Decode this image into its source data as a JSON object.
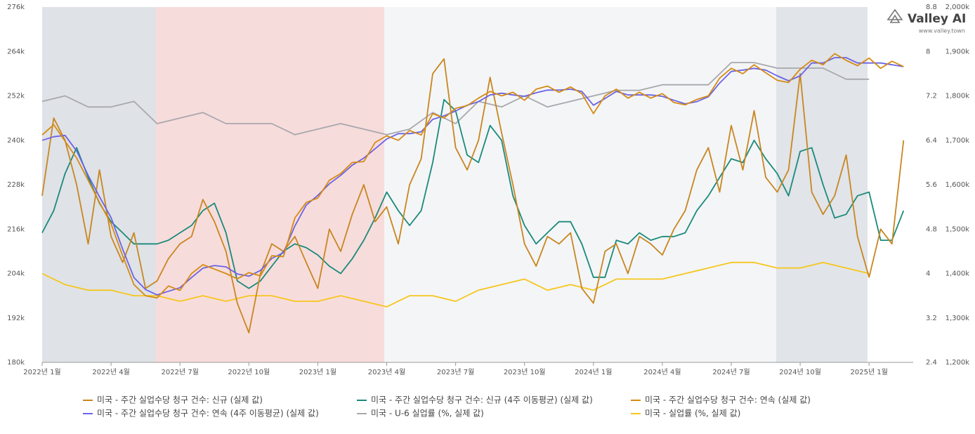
{
  "brand": {
    "name": "Valley AI",
    "url": "www.valley.town"
  },
  "chart_data": {
    "type": "line",
    "xlim": [
      2022,
      2025.16
    ],
    "xticks": [
      {
        "value": 2022,
        "label": "2022년 1월"
      },
      {
        "value": 2022.25,
        "label": "2022년 4월"
      },
      {
        "value": 2022.5,
        "label": "2022년 7월"
      },
      {
        "value": 2022.75,
        "label": "2022년 10월"
      },
      {
        "value": 2023,
        "label": "2023년 1월"
      },
      {
        "value": 2023.25,
        "label": "2023년 4월"
      },
      {
        "value": 2023.5,
        "label": "2023년 7월"
      },
      {
        "value": 2023.75,
        "label": "2023년 10월"
      },
      {
        "value": 2024,
        "label": "2024년 1월"
      },
      {
        "value": 2024.25,
        "label": "2024년 4월"
      },
      {
        "value": 2024.5,
        "label": "2024년 7월"
      },
      {
        "value": 2024.75,
        "label": "2024년 10월"
      },
      {
        "value": 2025,
        "label": "2025년 1월"
      }
    ],
    "ylim": [
      180,
      276
    ],
    "yticks": [
      {
        "value": 180,
        "label": "180k"
      },
      {
        "value": 192,
        "label": "192k"
      },
      {
        "value": 204,
        "label": "204k"
      },
      {
        "value": 216,
        "label": "216k"
      },
      {
        "value": 228,
        "label": "228k"
      },
      {
        "value": 240,
        "label": "240k"
      },
      {
        "value": 252,
        "label": "252k"
      },
      {
        "value": 264,
        "label": "264k"
      },
      {
        "value": 276,
        "label": "276k"
      }
    ],
    "y2lim": [
      2.4,
      8.8
    ],
    "y2ticks": [
      2.4,
      3.2,
      4,
      4.8,
      5.6,
      6.4,
      7.2,
      8,
      8.8
    ],
    "y3lim": [
      1200,
      2000
    ],
    "y3ticks": [
      {
        "value": 1200,
        "label": "1,200k"
      },
      {
        "value": 1300,
        "label": "1,300k"
      },
      {
        "value": 1400,
        "label": "1,400k"
      },
      {
        "value": 1500,
        "label": "1,500k"
      },
      {
        "value": 1600,
        "label": "1,600k"
      },
      {
        "value": 1700,
        "label": "1,700k"
      },
      {
        "value": 1800,
        "label": "1,800k"
      },
      {
        "value": 1900,
        "label": "1,900k"
      },
      {
        "value": 2000,
        "label": "2,000k"
      }
    ],
    "series": [
      {
        "name": "미국 - 주간 실업수당 청구 건수: 신규 (실제 값)",
        "color": "#c8861e",
        "axis": "y",
        "x": [
          2022,
          2022.042,
          2022.083,
          2022.125,
          2022.167,
          2022.208,
          2022.25,
          2022.292,
          2022.333,
          2022.375,
          2022.417,
          2022.458,
          2022.5,
          2022.542,
          2022.583,
          2022.625,
          2022.667,
          2022.708,
          2022.75,
          2022.792,
          2022.833,
          2022.875,
          2022.917,
          2022.958,
          2023,
          2023.042,
          2023.083,
          2023.125,
          2023.167,
          2023.208,
          2023.25,
          2023.292,
          2023.333,
          2023.375,
          2023.417,
          2023.458,
          2023.5,
          2023.542,
          2023.583,
          2023.625,
          2023.667,
          2023.708,
          2023.75,
          2023.792,
          2023.833,
          2023.875,
          2023.917,
          2023.958,
          2024,
          2024.042,
          2024.083,
          2024.125,
          2024.167,
          2024.208,
          2024.25,
          2024.292,
          2024.333,
          2024.375,
          2024.417,
          2024.458,
          2024.5,
          2024.542,
          2024.583,
          2024.625,
          2024.667,
          2024.708,
          2024.75,
          2024.792,
          2024.833,
          2024.875,
          2024.917,
          2024.958,
          2025,
          2025.042,
          2025.083,
          2025.125
        ],
        "values": [
          225,
          246,
          240,
          228,
          212,
          232,
          214,
          207,
          215,
          200,
          202,
          208,
          212,
          214,
          224,
          218,
          210,
          196,
          188,
          204,
          212,
          210,
          214,
          207,
          200,
          216,
          210,
          220,
          228,
          218,
          222,
          212,
          228,
          235,
          258,
          262,
          238,
          232,
          240,
          257,
          242,
          228,
          212,
          206,
          214,
          212,
          215,
          200,
          196,
          210,
          212,
          204,
          214,
          212,
          209,
          216,
          221,
          232,
          238,
          226,
          244,
          232,
          248,
          230,
          226,
          232,
          258,
          226,
          220,
          225,
          236,
          214,
          203,
          216,
          212,
          240
        ]
      },
      {
        "name": "미국 - 주간 실업수당 청구 건수: 신규 (4주 이동평균) (실제 값)",
        "color": "#1a8a7a",
        "axis": "y",
        "x": [
          2022,
          2022.042,
          2022.083,
          2022.125,
          2022.167,
          2022.208,
          2022.25,
          2022.292,
          2022.333,
          2022.375,
          2022.417,
          2022.458,
          2022.5,
          2022.542,
          2022.583,
          2022.625,
          2022.667,
          2022.708,
          2022.75,
          2022.792,
          2022.833,
          2022.875,
          2022.917,
          2022.958,
          2023,
          2023.042,
          2023.083,
          2023.125,
          2023.167,
          2023.208,
          2023.25,
          2023.292,
          2023.333,
          2023.375,
          2023.417,
          2023.458,
          2023.5,
          2023.542,
          2023.583,
          2023.625,
          2023.667,
          2023.708,
          2023.75,
          2023.792,
          2023.833,
          2023.875,
          2023.917,
          2023.958,
          2024,
          2024.042,
          2024.083,
          2024.125,
          2024.167,
          2024.208,
          2024.25,
          2024.292,
          2024.333,
          2024.375,
          2024.417,
          2024.458,
          2024.5,
          2024.542,
          2024.583,
          2024.625,
          2024.667,
          2024.708,
          2024.75,
          2024.792,
          2024.833,
          2024.875,
          2024.917,
          2024.958,
          2025,
          2025.042,
          2025.083,
          2025.125
        ],
        "values": [
          215,
          221,
          231,
          238,
          230,
          223,
          218,
          215,
          212,
          212,
          212,
          213,
          215,
          217,
          221,
          223,
          215,
          202,
          200,
          202,
          206,
          210,
          212,
          211,
          209,
          206,
          204,
          208,
          213,
          219,
          226,
          221,
          217,
          221,
          234,
          251,
          248,
          236,
          234,
          244,
          240,
          225,
          217,
          212,
          215,
          218,
          218,
          212,
          203,
          203,
          213,
          212,
          215,
          213,
          214,
          214,
          215,
          221,
          225,
          230,
          235,
          234,
          240,
          235,
          231,
          225,
          237,
          238,
          228,
          219,
          220,
          225,
          226,
          213,
          213,
          221
        ]
      },
      {
        "name": "미국 - 주간 실업수당 청구 건수: 연속 (실제 값)",
        "color": "#d58c12",
        "axis": "y3",
        "x": [
          2022,
          2022.042,
          2022.083,
          2022.125,
          2022.167,
          2022.208,
          2022.25,
          2022.292,
          2022.333,
          2022.375,
          2022.417,
          2022.458,
          2022.5,
          2022.542,
          2022.583,
          2022.625,
          2022.667,
          2022.708,
          2022.75,
          2022.792,
          2022.833,
          2022.875,
          2022.917,
          2022.958,
          2023,
          2023.042,
          2023.083,
          2023.125,
          2023.167,
          2023.208,
          2023.25,
          2023.292,
          2023.333,
          2023.375,
          2023.417,
          2023.458,
          2023.5,
          2023.542,
          2023.583,
          2023.625,
          2023.667,
          2023.708,
          2023.75,
          2023.792,
          2023.833,
          2023.875,
          2023.917,
          2023.958,
          2024,
          2024.042,
          2024.083,
          2024.125,
          2024.167,
          2024.208,
          2024.25,
          2024.292,
          2024.333,
          2024.375,
          2024.417,
          2024.458,
          2024.5,
          2024.542,
          2024.583,
          2024.625,
          2024.667,
          2024.708,
          2024.75,
          2024.792,
          2024.833,
          2024.875,
          2024.917,
          2024.958,
          2025,
          2025.042,
          2025.083,
          2025.125
        ],
        "values": [
          1712,
          1735,
          1698,
          1660,
          1610,
          1560,
          1512,
          1440,
          1375,
          1350,
          1345,
          1372,
          1362,
          1400,
          1420,
          1410,
          1400,
          1388,
          1402,
          1395,
          1440,
          1438,
          1525,
          1560,
          1570,
          1610,
          1625,
          1650,
          1652,
          1695,
          1710,
          1700,
          1722,
          1712,
          1760,
          1750,
          1772,
          1778,
          1795,
          1810,
          1800,
          1808,
          1790,
          1815,
          1822,
          1808,
          1820,
          1805,
          1760,
          1800,
          1815,
          1795,
          1808,
          1795,
          1805,
          1785,
          1780,
          1792,
          1800,
          1840,
          1862,
          1850,
          1870,
          1852,
          1835,
          1830,
          1860,
          1880,
          1870,
          1895,
          1880,
          1868,
          1885,
          1862,
          1878,
          1866
        ]
      },
      {
        "name": "미국 - 주간 실업수당 청구 건수: 연속 (4주 이동평균) (실제 값)",
        "color": "#6b63e6",
        "axis": "y3",
        "x": [
          2022,
          2022.042,
          2022.083,
          2022.125,
          2022.167,
          2022.208,
          2022.25,
          2022.292,
          2022.333,
          2022.375,
          2022.417,
          2022.458,
          2022.5,
          2022.542,
          2022.583,
          2022.625,
          2022.667,
          2022.708,
          2022.75,
          2022.792,
          2022.833,
          2022.875,
          2022.917,
          2022.958,
          2023,
          2023.042,
          2023.083,
          2023.125,
          2023.167,
          2023.208,
          2023.25,
          2023.292,
          2023.333,
          2023.375,
          2023.417,
          2023.458,
          2023.5,
          2023.542,
          2023.583,
          2023.625,
          2023.667,
          2023.708,
          2023.75,
          2023.792,
          2023.833,
          2023.875,
          2023.917,
          2023.958,
          2024,
          2024.042,
          2024.083,
          2024.125,
          2024.167,
          2024.208,
          2024.25,
          2024.292,
          2024.333,
          2024.375,
          2024.417,
          2024.458,
          2024.5,
          2024.542,
          2024.583,
          2024.625,
          2024.667,
          2024.708,
          2024.75,
          2024.792,
          2024.833,
          2024.875,
          2024.917,
          2024.958,
          2025,
          2025.042,
          2025.083,
          2025.125
        ],
        "values": [
          1700,
          1708,
          1711,
          1676,
          1621,
          1573,
          1526,
          1455,
          1391,
          1364,
          1352,
          1360,
          1368,
          1391,
          1412,
          1418,
          1415,
          1399,
          1394,
          1407,
          1434,
          1447,
          1507,
          1554,
          1576,
          1602,
          1621,
          1644,
          1660,
          1681,
          1703,
          1715,
          1715,
          1719,
          1747,
          1755,
          1766,
          1779,
          1787,
          1802,
          1806,
          1802,
          1799,
          1807,
          1813,
          1813,
          1815,
          1810,
          1779,
          1794,
          1810,
          1802,
          1802,
          1802,
          1799,
          1790,
          1782,
          1787,
          1798,
          1829,
          1855,
          1858,
          1862,
          1858,
          1845,
          1834,
          1845,
          1874,
          1874,
          1886,
          1886,
          1874,
          1874,
          1874,
          1870,
          1866
        ]
      },
      {
        "name": "미국 - U-6 실업률 (%, 실제 값)",
        "color": "#a8a8ad",
        "axis": "y2",
        "x": [
          2022,
          2022.083,
          2022.167,
          2022.25,
          2022.333,
          2022.417,
          2022.5,
          2022.583,
          2022.667,
          2022.75,
          2022.833,
          2022.917,
          2023,
          2023.083,
          2023.167,
          2023.25,
          2023.333,
          2023.417,
          2023.5,
          2023.583,
          2023.667,
          2023.75,
          2023.833,
          2023.917,
          2024,
          2024.083,
          2024.167,
          2024.25,
          2024.333,
          2024.417,
          2024.5,
          2024.583,
          2024.667,
          2024.75,
          2024.833,
          2024.917,
          2025
        ],
        "values": [
          7.1,
          7.2,
          7.0,
          7.0,
          7.1,
          6.7,
          6.8,
          6.9,
          6.7,
          6.7,
          6.7,
          6.5,
          6.6,
          6.7,
          6.6,
          6.5,
          6.6,
          6.9,
          6.7,
          7.1,
          7.0,
          7.2,
          7.0,
          7.1,
          7.2,
          7.3,
          7.3,
          7.4,
          7.4,
          7.4,
          7.8,
          7.8,
          7.7,
          7.7,
          7.7,
          7.5,
          7.5
        ]
      },
      {
        "name": "미국 - 실업률 (%, 실제 값)",
        "color": "#f6c61c",
        "axis": "y2",
        "x": [
          2022,
          2022.083,
          2022.167,
          2022.25,
          2022.333,
          2022.417,
          2022.5,
          2022.583,
          2022.667,
          2022.75,
          2022.833,
          2022.917,
          2023,
          2023.083,
          2023.167,
          2023.25,
          2023.333,
          2023.417,
          2023.5,
          2023.583,
          2023.667,
          2023.75,
          2023.833,
          2023.917,
          2024,
          2024.083,
          2024.167,
          2024.25,
          2024.333,
          2024.417,
          2024.5,
          2024.583,
          2024.667,
          2024.75,
          2024.833,
          2024.917,
          2025
        ],
        "values": [
          4.0,
          3.8,
          3.7,
          3.7,
          3.6,
          3.6,
          3.5,
          3.6,
          3.5,
          3.6,
          3.6,
          3.5,
          3.5,
          3.6,
          3.5,
          3.4,
          3.6,
          3.6,
          3.5,
          3.7,
          3.8,
          3.9,
          3.7,
          3.8,
          3.7,
          3.9,
          3.9,
          3.9,
          4.0,
          4.1,
          4.2,
          4.2,
          4.1,
          4.1,
          4.2,
          4.1,
          4.0
        ]
      }
    ]
  }
}
